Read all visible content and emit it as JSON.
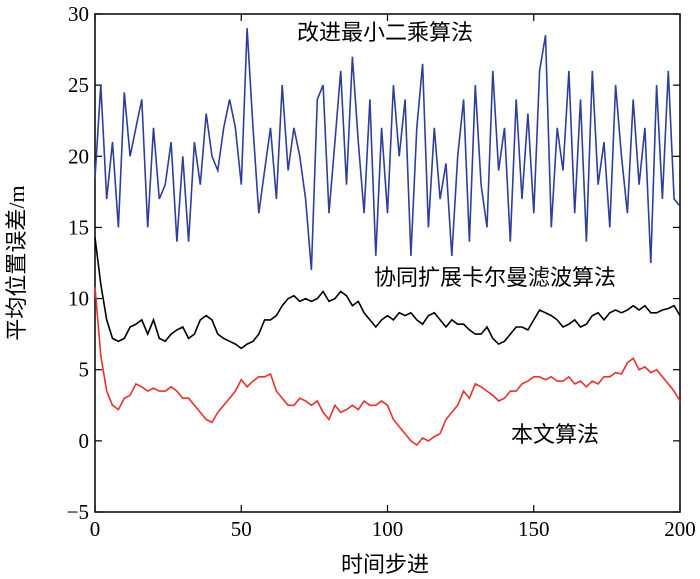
{
  "chart_data": {
    "type": "line",
    "x_label": "时间步进",
    "y_label": "平均位置误差/m",
    "annotations": [
      "改进最小二乘算法",
      "协同扩展卡尔曼滤波算法",
      "本文算法"
    ],
    "x": [
      0,
      2,
      4,
      6,
      8,
      10,
      12,
      14,
      16,
      18,
      20,
      22,
      24,
      26,
      28,
      30,
      32,
      34,
      36,
      38,
      40,
      42,
      44,
      46,
      48,
      50,
      52,
      54,
      56,
      58,
      60,
      62,
      64,
      66,
      68,
      70,
      72,
      74,
      76,
      78,
      80,
      82,
      84,
      86,
      88,
      90,
      92,
      94,
      96,
      98,
      100,
      102,
      104,
      106,
      108,
      110,
      112,
      114,
      116,
      118,
      120,
      122,
      124,
      126,
      128,
      130,
      132,
      134,
      136,
      138,
      140,
      142,
      144,
      146,
      148,
      150,
      152,
      154,
      156,
      158,
      160,
      162,
      164,
      166,
      168,
      170,
      172,
      174,
      176,
      178,
      180,
      182,
      184,
      186,
      188,
      190,
      192,
      194,
      196,
      198,
      200
    ],
    "series": [
      {
        "color": "#2e3f9a",
        "values": [
          18.5,
          25,
          17,
          21,
          15,
          24.5,
          20,
          22,
          24,
          15,
          22,
          17,
          18,
          21,
          14,
          20,
          14,
          21,
          18,
          23,
          20,
          19,
          22,
          24,
          22,
          18,
          29,
          22,
          16,
          19,
          22,
          17,
          25,
          19,
          22,
          20,
          17,
          12,
          24,
          25,
          16,
          21,
          26,
          18,
          27,
          21,
          16,
          24,
          13,
          22,
          16,
          25,
          20,
          24,
          13,
          22,
          26.5,
          15,
          22,
          17,
          19.5,
          13,
          20,
          24,
          14,
          25,
          18,
          15,
          26,
          19,
          22,
          14,
          24,
          17,
          23,
          16,
          26,
          28.5,
          15,
          22,
          19,
          26,
          16,
          24,
          14,
          26,
          18,
          21,
          15,
          25,
          20,
          16,
          24,
          18,
          22,
          12.5,
          25,
          17,
          26,
          17,
          16.5
        ]
      },
      {
        "color": "#000000",
        "values": [
          14.3,
          11,
          8.5,
          7.2,
          7,
          7.2,
          8,
          8.2,
          8.5,
          7.5,
          8.5,
          7.2,
          7,
          7.5,
          7.8,
          8,
          7.2,
          7.5,
          8.5,
          8.8,
          8.5,
          7.5,
          7.2,
          7,
          6.8,
          6.5,
          6.8,
          7,
          7.5,
          8.5,
          8.5,
          8.8,
          9.5,
          10,
          10.2,
          9.8,
          10,
          9.8,
          10,
          10.5,
          9.8,
          10,
          10.5,
          10.2,
          9.5,
          9.8,
          9,
          8.5,
          8,
          8.5,
          8.8,
          8.5,
          9,
          8.8,
          9,
          8.5,
          8.2,
          8.8,
          9,
          8.5,
          8,
          8.5,
          8.2,
          8.2,
          7.8,
          7.5,
          7.5,
          8,
          7.2,
          6.8,
          7,
          7.5,
          8,
          8,
          7.8,
          8.5,
          9.2,
          9,
          8.8,
          8.5,
          8,
          8.2,
          8.5,
          8,
          8.2,
          8.8,
          9,
          8.5,
          9,
          9.2,
          9,
          9.2,
          9.5,
          9.2,
          9.5,
          9,
          9,
          9.2,
          9.3,
          9.5,
          8.8
        ]
      },
      {
        "color": "#e8312f",
        "values": [
          10.8,
          6,
          3.5,
          2.5,
          2.2,
          3,
          3.2,
          4,
          3.8,
          3.5,
          3.7,
          3.5,
          3.5,
          3.8,
          3.5,
          3,
          3,
          2.5,
          2,
          1.5,
          1.3,
          2,
          2.5,
          3,
          3.5,
          4.3,
          3.8,
          4.2,
          4.5,
          4.5,
          4.7,
          3.5,
          3,
          2.5,
          2.5,
          3,
          2.8,
          2.5,
          2.8,
          2,
          1.5,
          2.5,
          2,
          2.2,
          2.5,
          2.2,
          2.8,
          2.5,
          2.5,
          2.8,
          2.5,
          1.5,
          1,
          0.5,
          0,
          -0.3,
          0.2,
          0,
          0.3,
          0.5,
          1.5,
          2,
          2.5,
          3.5,
          3,
          4,
          3.8,
          3.5,
          3.2,
          2.8,
          3,
          3.5,
          3.5,
          4,
          4.2,
          4.5,
          4.5,
          4.3,
          4.5,
          4.2,
          4.2,
          4.5,
          4,
          4.2,
          3.8,
          4.2,
          4,
          4.5,
          4.5,
          4.8,
          4.7,
          5.5,
          5.8,
          5,
          5.2,
          4.8,
          5,
          4.5,
          4,
          3.5,
          2.8
        ]
      }
    ],
    "xlim": [
      0,
      200
    ],
    "xticks": [
      0,
      50,
      100,
      150,
      200
    ],
    "ylim": [
      -5,
      30
    ],
    "yticks": [
      {
        "value": -5,
        "label": "−5"
      },
      0,
      5,
      10,
      15,
      20,
      25,
      30
    ]
  }
}
